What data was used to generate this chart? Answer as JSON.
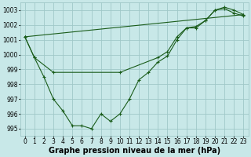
{
  "title": "Graphe pression niveau de la mer (hPa)",
  "bg_color": "#c8e8e8",
  "grid_color": "#a0c8c8",
  "line_color": "#1a5c1a",
  "marker_color": "#1a5c1a",
  "ylim": [
    994.5,
    1003.5
  ],
  "xlim": [
    -0.5,
    23.5
  ],
  "yticks": [
    995,
    996,
    997,
    998,
    999,
    1000,
    1001,
    1002,
    1003
  ],
  "xticks": [
    0,
    1,
    2,
    3,
    4,
    5,
    6,
    7,
    8,
    9,
    10,
    11,
    12,
    13,
    14,
    15,
    16,
    17,
    18,
    19,
    20,
    21,
    22,
    23
  ],
  "series1_x": [
    0,
    1,
    2,
    3,
    4,
    5,
    6,
    7,
    8,
    9,
    10,
    11,
    12,
    13,
    14,
    15,
    16,
    17,
    18,
    19,
    20,
    21,
    22,
    23
  ],
  "series1_y": [
    1001.2,
    999.8,
    998.5,
    997.0,
    996.2,
    995.2,
    995.2,
    995.0,
    996.0,
    995.5,
    996.0,
    997.0,
    998.3,
    998.8,
    999.5,
    999.9,
    1001.0,
    1001.8,
    1001.8,
    1002.3,
    1003.0,
    1003.1,
    1002.8,
    1002.6
  ],
  "series2_x": [
    0,
    1,
    3,
    10,
    14,
    15,
    16,
    17,
    18,
    19,
    20,
    21,
    22,
    23
  ],
  "series2_y": [
    1001.2,
    999.8,
    998.8,
    998.8,
    999.8,
    1000.2,
    1001.2,
    1001.8,
    1001.9,
    1002.3,
    1003.0,
    1003.2,
    1003.0,
    1002.7
  ],
  "series3_x": [
    0,
    23
  ],
  "series3_y": [
    1001.2,
    1002.7
  ],
  "tick_fontsize": 5.5,
  "label_fontsize": 7
}
